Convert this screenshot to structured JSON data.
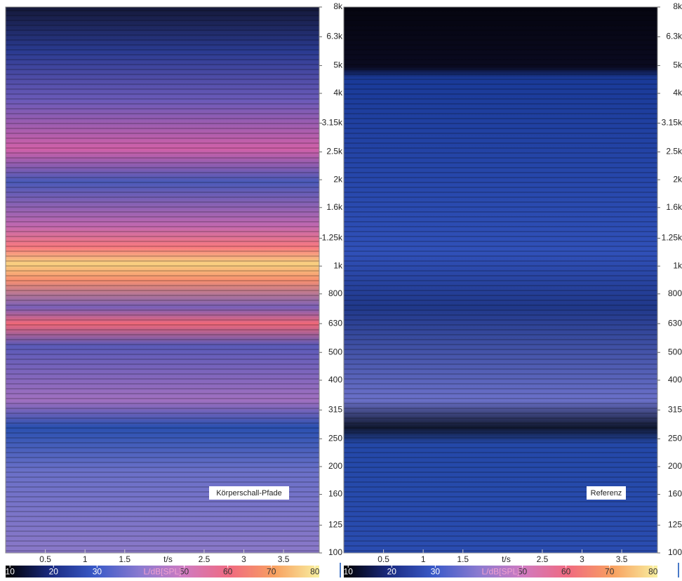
{
  "chart_data": [
    {
      "type": "heatmap",
      "annotation": "Körperschall-Pfade",
      "xlabel": "t/s",
      "xlim": [
        0,
        3.95
      ],
      "xticks": [
        0.5,
        1,
        1.5,
        2.5,
        3,
        3.5
      ],
      "ylim": [
        100,
        8000
      ],
      "log_y": true,
      "yticks": [
        {
          "value": 8000,
          "label": "8k"
        },
        {
          "value": 6300,
          "label": "6.3k"
        },
        {
          "value": 5000,
          "label": "5k"
        },
        {
          "value": 4000,
          "label": "4k"
        },
        {
          "value": 3150,
          "label": "3.15k"
        },
        {
          "value": 2500,
          "label": "2.5k"
        },
        {
          "value": 2000,
          "label": "2k"
        },
        {
          "value": 1600,
          "label": "1.6k"
        },
        {
          "value": 1250,
          "label": "1.25k"
        },
        {
          "value": 1000,
          "label": "1k"
        },
        800,
        630,
        500,
        400,
        315,
        250,
        200,
        160,
        125,
        100
      ],
      "colorbar": {
        "label": "L/dB[SPL]",
        "lim": [
          9,
          81
        ],
        "ticks": [
          10,
          20,
          30,
          50,
          60,
          70,
          80
        ],
        "colors": [
          "#000000",
          "#1a2a80",
          "#3a5ac8",
          "#8a7ad0",
          "#d07ac0",
          "#f06a80",
          "#f8a060",
          "#f8f0a0"
        ]
      }
    },
    {
      "type": "heatmap",
      "annotation": "Referenz",
      "xlabel": "t/s",
      "xlim": [
        0,
        3.95
      ],
      "xticks": [
        0.5,
        1,
        1.5,
        2.5,
        3,
        3.5
      ],
      "ylim": [
        100,
        8000
      ],
      "log_y": true,
      "yticks": [
        {
          "value": 8000,
          "label": "8k"
        },
        {
          "value": 6300,
          "label": "6.3k"
        },
        {
          "value": 5000,
          "label": "5k"
        },
        {
          "value": 4000,
          "label": "4k"
        },
        {
          "value": 3150,
          "label": "3.15k"
        },
        {
          "value": 2500,
          "label": "2.5k"
        },
        {
          "value": 2000,
          "label": "2k"
        },
        {
          "value": 1600,
          "label": "1.6k"
        },
        {
          "value": 1250,
          "label": "1.25k"
        },
        {
          "value": 1000,
          "label": "1k"
        },
        800,
        630,
        500,
        400,
        315,
        250,
        200,
        160,
        125,
        100
      ],
      "colorbar": {
        "label": "L/dB[SPL]",
        "lim": [
          9,
          81
        ],
        "ticks": [
          10,
          20,
          30,
          50,
          60,
          70,
          80
        ],
        "colors": [
          "#000000",
          "#1a2a80",
          "#3a5ac8",
          "#8a7ad0",
          "#d07ac0",
          "#f06a80",
          "#f8a060",
          "#f8f0a0"
        ]
      }
    }
  ]
}
